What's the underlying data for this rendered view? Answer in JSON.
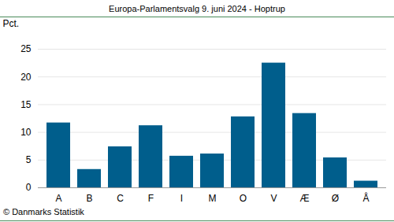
{
  "chart_data": {
    "type": "bar",
    "title": "Europa-Parlamentsvalg 9. juni 2024 - Hoptrup",
    "y_label": "Pct.",
    "caption": "© Danmarks Statistik",
    "categories": [
      "A",
      "B",
      "C",
      "F",
      "I",
      "M",
      "O",
      "V",
      "Æ",
      "Ø",
      "Å"
    ],
    "values": [
      11.7,
      3.3,
      7.4,
      11.2,
      5.7,
      6.1,
      12.8,
      22.5,
      13.4,
      5.4,
      1.2
    ],
    "color": "#005e8c",
    "ylim": [
      0,
      25
    ],
    "yticks": [
      0,
      5,
      10,
      15,
      20,
      25
    ],
    "grid": true
  }
}
